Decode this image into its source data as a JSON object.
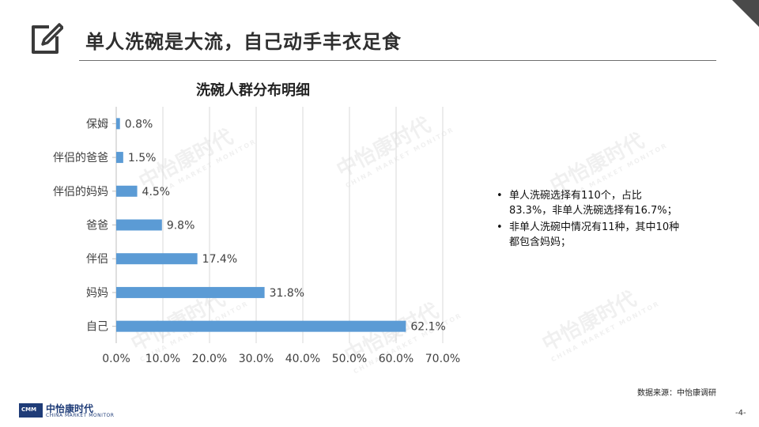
{
  "slide": {
    "title": "单人洗碗是大流，自己动手丰衣足食",
    "icon": "edit-pencil-icon"
  },
  "chart_data": {
    "type": "bar",
    "orientation": "horizontal",
    "title": "洗碗人群分布明细",
    "categories": [
      "保姆",
      "伴侣的爸爸",
      "伴侣的妈妈",
      "爸爸",
      "伴侣",
      "妈妈",
      "自己"
    ],
    "values": [
      0.8,
      1.5,
      4.5,
      9.8,
      17.4,
      31.8,
      62.1
    ],
    "value_labels": [
      "0.8%",
      "1.5%",
      "4.5%",
      "9.8%",
      "17.4%",
      "31.8%",
      "62.1%"
    ],
    "x_ticks": [
      "0.0%",
      "10.0%",
      "20.0%",
      "30.0%",
      "40.0%",
      "50.0%",
      "60.0%",
      "70.0%"
    ],
    "xlim": [
      0,
      70
    ],
    "grid": true,
    "bar_color": "#5b9bd5"
  },
  "notes": [
    "单人洗碗选择有110个，占比83.3%，非单人洗碗选择有16.7%；",
    "非单人洗碗中情况有11种，其中10种都包含妈妈；"
  ],
  "source": "数据来源：中怡康调研",
  "logo": {
    "mark": "CMM",
    "name": "中怡康时代",
    "tagline": "CHINA MARKET MONITOR"
  },
  "watermark": {
    "text": "中怡康时代",
    "tagline": "CHINA MARKET MONITOR"
  },
  "page_number": "-4-"
}
